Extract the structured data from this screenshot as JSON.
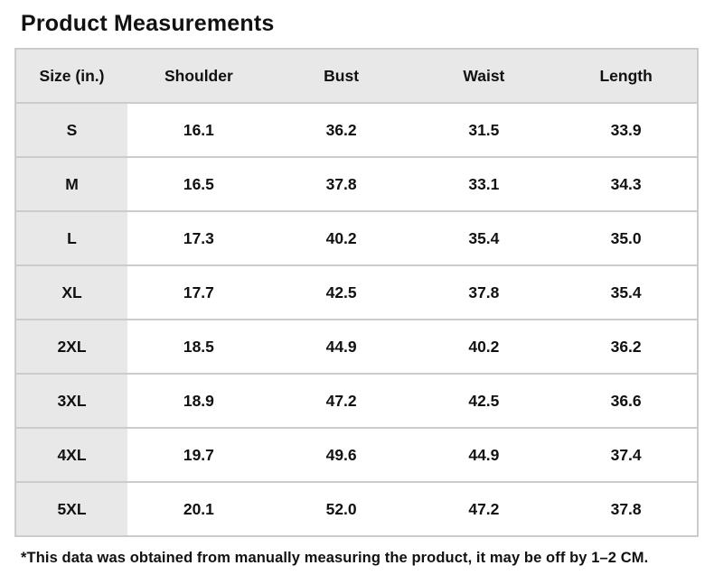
{
  "chart_data": {
    "type": "table",
    "title": "Product Measurements",
    "columns": [
      "Size (in.)",
      "Shoulder",
      "Bust",
      "Waist",
      "Length"
    ],
    "rows": [
      {
        "size": "S",
        "values": [
          "16.1",
          "36.2",
          "31.5",
          "33.9"
        ]
      },
      {
        "size": "M",
        "values": [
          "16.5",
          "37.8",
          "33.1",
          "34.3"
        ]
      },
      {
        "size": "L",
        "values": [
          "17.3",
          "40.2",
          "35.4",
          "35.0"
        ]
      },
      {
        "size": "XL",
        "values": [
          "17.7",
          "42.5",
          "37.8",
          "35.4"
        ]
      },
      {
        "size": "2XL",
        "values": [
          "18.5",
          "44.9",
          "40.2",
          "36.2"
        ]
      },
      {
        "size": "3XL",
        "values": [
          "18.9",
          "47.2",
          "42.5",
          "36.6"
        ]
      },
      {
        "size": "4XL",
        "values": [
          "19.7",
          "49.6",
          "44.9",
          "37.4"
        ]
      },
      {
        "size": "5XL",
        "values": [
          "20.1",
          "52.0",
          "47.2",
          "37.8"
        ]
      }
    ],
    "footnote": "*This data was obtained from manually measuring the product, it may be off by 1–2 CM.",
    "unit": "in.",
    "layout": {
      "grid": "horizontal-row-borders-only",
      "header_position": "top"
    }
  },
  "colors": {
    "header_bg": "#e8e8e8",
    "size_column_bg": "#e8e8e8",
    "cell_bg": "#ffffff",
    "border": "#cccccc",
    "text": "#111111"
  }
}
